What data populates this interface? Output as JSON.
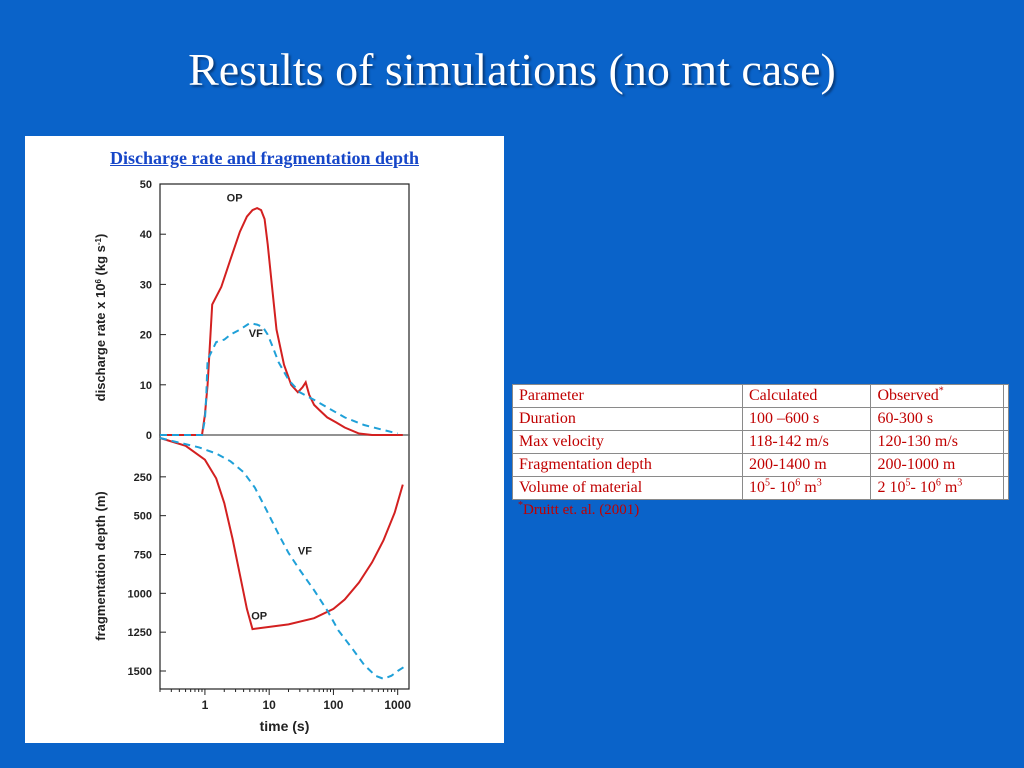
{
  "slide": {
    "title": "Results of simulations (no mt case)"
  },
  "figure": {
    "heading": "Discharge rate and fragmentation depth"
  },
  "chart_data": [
    {
      "type": "line",
      "name": "discharge",
      "ylabel_parts": [
        "discharge rate x 10",
        "6",
        " (kg s",
        "-1",
        ")"
      ],
      "xscale": "log",
      "xlim": [
        0.2,
        1500
      ],
      "ylim": [
        0,
        50
      ],
      "yticks": [
        "0",
        "10",
        "20",
        "30",
        "40",
        "50"
      ],
      "grid": false,
      "series": [
        {
          "name": "OP",
          "color": "#d32020",
          "style": "solid",
          "x": [
            0.2,
            0.9,
            1.0,
            1.1,
            1.3,
            1.8,
            2.5,
            3.5,
            4.5,
            5.5,
            6.5,
            7.5,
            8.5,
            9.5,
            11,
            13,
            17,
            22,
            28,
            33,
            37,
            42,
            50,
            60,
            80,
            110,
            150,
            250,
            400,
            600,
            1000,
            1200
          ],
          "y": [
            0,
            0,
            4,
            10,
            26,
            29.5,
            35,
            40.5,
            43.5,
            44.8,
            45.2,
            44.8,
            43,
            38,
            30,
            21,
            14,
            10,
            8.5,
            9.5,
            10.5,
            8,
            6,
            5,
            3.5,
            2.5,
            1.5,
            0.3,
            0,
            0,
            0,
            0
          ]
        },
        {
          "name": "VF",
          "color": "#1fa0d8",
          "style": "dashed",
          "x": [
            0.2,
            0.7,
            0.9,
            1.0,
            1.05,
            1.1,
            1.5,
            2.0,
            2.5,
            3.5,
            5.0,
            6.5,
            8.0,
            9.5,
            11,
            14,
            20,
            30,
            50,
            80,
            150,
            300,
            600,
            1000
          ],
          "y": [
            0,
            0,
            0,
            3,
            8,
            15,
            18.5,
            19,
            20,
            21,
            22.3,
            22,
            21.5,
            20,
            18,
            14.5,
            11,
            8.5,
            7,
            5.5,
            3.5,
            2,
            1,
            0.3
          ]
        }
      ]
    },
    {
      "type": "line",
      "name": "fragmentation",
      "ylabel": "fragmentation depth (m)",
      "xlabel": "time (s)",
      "xscale": "log",
      "xlim": [
        0.2,
        1500
      ],
      "ylim": [
        0,
        1600
      ],
      "yticks": [
        "250",
        "500",
        "750",
        "1000",
        "1250",
        "1500"
      ],
      "xticks": [
        "1",
        "10",
        "100",
        "1000"
      ],
      "grid": false,
      "series": [
        {
          "name": "OP",
          "color": "#d32020",
          "style": "solid",
          "x": [
            0.2,
            0.5,
            1.0,
            1.5,
            2.0,
            2.7,
            3.5,
            4.5,
            5.5,
            20,
            50,
            100,
            150,
            250,
            400,
            600,
            900,
            1200
          ],
          "y": [
            0,
            50,
            140,
            260,
            420,
            650,
            880,
            1100,
            1230,
            1200,
            1160,
            1100,
            1040,
            930,
            800,
            660,
            480,
            300
          ]
        },
        {
          "name": "VF",
          "color": "#1fa0d8",
          "style": "dashed",
          "x": [
            0.2,
            0.4,
            0.8,
            1.5,
            2.5,
            4.0,
            6.0,
            9.0,
            14,
            20,
            30,
            50,
            80,
            120,
            200,
            300,
            450,
            600,
            800,
            1000,
            1300
          ],
          "y": [
            0,
            30,
            60,
            100,
            150,
            220,
            320,
            460,
            620,
            740,
            850,
            980,
            1110,
            1240,
            1360,
            1460,
            1530,
            1550,
            1530,
            1500,
            1470
          ]
        }
      ]
    }
  ],
  "table": {
    "header": {
      "param": "Parameter",
      "calc": "Calculated",
      "obs": "Observed",
      "obs_sup": "*"
    },
    "rows": [
      {
        "param": "Duration",
        "calc": "100 –600 s",
        "obs": "60-300 s"
      },
      {
        "param": "Max velocity",
        "calc": "118-142 m/s",
        "obs": "120-130 m/s"
      },
      {
        "param": "Fragmentation depth",
        "calc": "200-1400 m",
        "obs": "200-1000 m"
      },
      {
        "param": "Volume of material",
        "calc_parts": [
          "10",
          "5",
          "- 10",
          "6",
          " m",
          "3"
        ],
        "obs_parts": [
          "2 10",
          "5",
          "- 10",
          "6",
          " m",
          "3"
        ]
      }
    ],
    "footnote_sup": "*",
    "footnote": "Druitt et. al. (2001)"
  }
}
